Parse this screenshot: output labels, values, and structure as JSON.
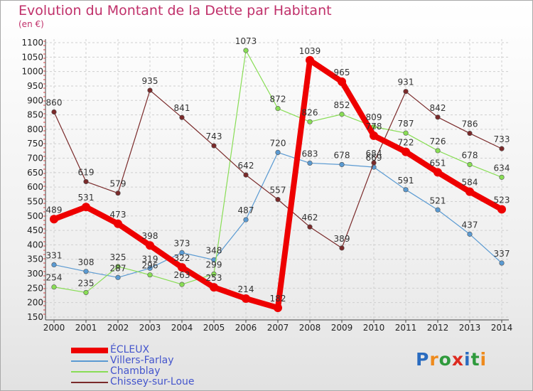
{
  "title": "Evolution du Montant de la Dette par Habitant",
  "subtitle": "(en €)",
  "logo": {
    "text": "Proxiti",
    "letters": [
      "P",
      "r",
      "o",
      "x",
      "i",
      "t",
      "i"
    ],
    "colors": [
      "#2a6cc0",
      "#ee8a1c",
      "#2f9a3c",
      "#dd2a20",
      "#2a6cc0",
      "#2f9a3c",
      "#ee8a1c"
    ]
  },
  "chart_data": {
    "type": "line",
    "title": "Evolution du Montant de la Dette par Habitant",
    "subtitle": "(en €)",
    "xlabel": "",
    "ylabel": "",
    "x": [
      "2000",
      "2001",
      "2002",
      "2003",
      "2004",
      "2005",
      "2006",
      "2007",
      "2008",
      "2009",
      "2010",
      "2011",
      "2012",
      "2013",
      "2014"
    ],
    "ylim": [
      150,
      1100
    ],
    "yticks": [
      150,
      200,
      250,
      300,
      350,
      400,
      450,
      500,
      550,
      600,
      650,
      700,
      750,
      800,
      850,
      900,
      950,
      1000,
      1050,
      1100
    ],
    "grid": true,
    "legend_position": "bottom-left",
    "series": [
      {
        "name": "ÉCLEUX",
        "color": "#ee0000",
        "width": 8,
        "values": [
          489,
          531,
          473,
          398,
          322,
          253,
          214,
          182,
          1039,
          965,
          778,
          722,
          651,
          584,
          523
        ],
        "labels": [
          "489",
          "531",
          "473",
          "398",
          "322",
          "253",
          "214",
          "182",
          "1039",
          "965",
          "778",
          "722",
          "651",
          "584",
          "523"
        ]
      },
      {
        "name": "Villers-Farlay",
        "color": "#5a9ad2",
        "width": 1.2,
        "values": [
          331,
          308,
          287,
          319,
          373,
          348,
          487,
          720,
          683,
          678,
          669,
          591,
          521,
          437,
          337
        ],
        "labels": [
          "331",
          "308",
          "287",
          "319",
          "373",
          "348",
          "487",
          "720",
          "683",
          "678",
          "669",
          "591",
          "521",
          "437",
          "337"
        ]
      },
      {
        "name": "Chamblay",
        "color": "#88dd55",
        "width": 1.2,
        "values": [
          254,
          235,
          325,
          296,
          263,
          299,
          1073,
          872,
          826,
          852,
          809,
          787,
          726,
          678,
          634
        ],
        "labels": [
          "254",
          "235",
          "325",
          "296",
          "263",
          "299",
          "1073",
          "872",
          "826",
          "852",
          "809",
          "787",
          "726",
          "678",
          "634"
        ]
      },
      {
        "name": "Chissey-sur-Loue",
        "color": "#7a2a2a",
        "width": 1.2,
        "values": [
          860,
          619,
          579,
          935,
          841,
          743,
          642,
          557,
          462,
          389,
          684,
          931,
          842,
          786,
          733
        ],
        "labels": [
          "860",
          "619",
          "579",
          "935",
          "841",
          "743",
          "642",
          "557",
          "462",
          "389",
          "684",
          "931",
          "842",
          "786",
          "733"
        ]
      }
    ]
  }
}
